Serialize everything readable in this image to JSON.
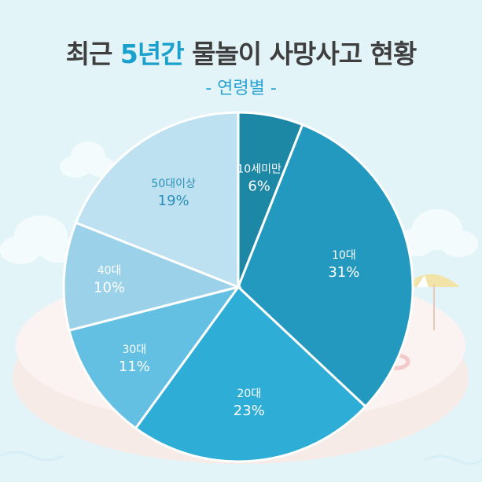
{
  "title": {
    "part1": "최근 ",
    "accent": "5년간",
    "part2": " 물놀이 사망사고 현황"
  },
  "subtitle": "- 연령별 -",
  "colors": {
    "background": "#e3f4f9",
    "title_accent": "#1aa0cc",
    "subtitle": "#2aa3d2"
  },
  "chart_data": {
    "type": "pie",
    "title": "최근 5년간 물놀이 사망사고 현황",
    "subtitle": "- 연령별 -",
    "slices": [
      {
        "label": "10세미만",
        "value": 6,
        "display": "6%",
        "color": "#1d87a6",
        "text_color": "#ffffff"
      },
      {
        "label": "10대",
        "value": 31,
        "display": "31%",
        "color": "#2499bf",
        "text_color": "#ffffff"
      },
      {
        "label": "20대",
        "value": 23,
        "display": "23%",
        "color": "#2eadd6",
        "text_color": "#ffffff"
      },
      {
        "label": "30대",
        "value": 11,
        "display": "11%",
        "color": "#63c0e2",
        "text_color": "#ffffff"
      },
      {
        "label": "40대",
        "value": 10,
        "display": "10%",
        "color": "#9cd2e9",
        "text_color": "#ffffff"
      },
      {
        "label": "50대이상",
        "value": 19,
        "display": "19%",
        "color": "#bde1f0",
        "text_color": "#2b8fb8"
      }
    ]
  }
}
